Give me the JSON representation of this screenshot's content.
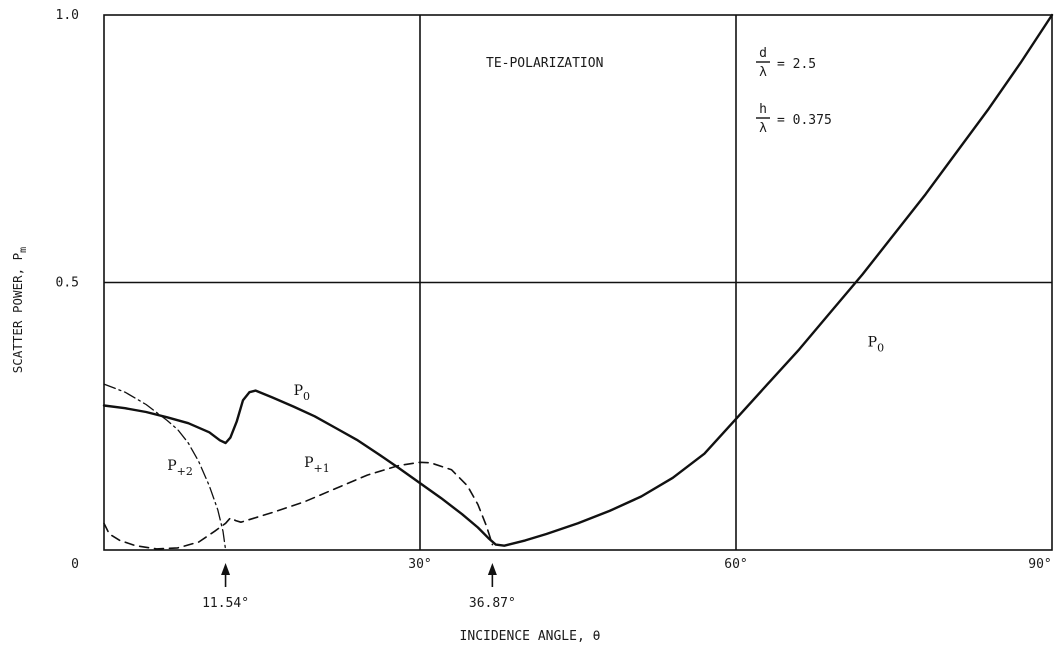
{
  "chart_data": {
    "type": "line",
    "xlabel": "INCIDENCE ANGLE, θ",
    "ylabel": "SCATTER POWER, P",
    "ylabel_sub": "m",
    "xlim": [
      0,
      90
    ],
    "ylim": [
      0,
      1.0
    ],
    "x_ticks": [
      {
        "value": 30,
        "label": "30°"
      },
      {
        "value": 60,
        "label": "60°"
      },
      {
        "value": 90,
        "label": "90°"
      }
    ],
    "y_ticks": [
      {
        "value": 0,
        "label": "0"
      },
      {
        "value": 0.5,
        "label": "0.5"
      },
      {
        "value": 1.0,
        "label": "1.0"
      }
    ],
    "grid": true,
    "title_annotation": "TE-POLARIZATION",
    "parameters": [
      {
        "num": "d",
        "den": "λ",
        "value": "= 2.5"
      },
      {
        "num": "h",
        "den": "λ",
        "value": "= 0.375"
      }
    ],
    "markers": [
      {
        "x": 11.54,
        "label": "11.54°"
      },
      {
        "x": 36.87,
        "label": "36.87°"
      }
    ],
    "series": [
      {
        "name": "P0",
        "label_main": "P",
        "label_sub": "0",
        "line_style": "solid",
        "label_positions": [
          [
            18,
            0.29
          ],
          [
            72.5,
            0.38
          ]
        ],
        "points": [
          [
            0,
            0.27
          ],
          [
            2,
            0.265
          ],
          [
            4,
            0.258
          ],
          [
            6,
            0.248
          ],
          [
            8,
            0.237
          ],
          [
            10,
            0.22
          ],
          [
            11,
            0.205
          ],
          [
            11.54,
            0.2
          ],
          [
            12,
            0.21
          ],
          [
            12.6,
            0.24
          ],
          [
            13.2,
            0.28
          ],
          [
            13.8,
            0.295
          ],
          [
            14.4,
            0.298
          ],
          [
            16,
            0.285
          ],
          [
            18,
            0.268
          ],
          [
            20,
            0.25
          ],
          [
            22,
            0.228
          ],
          [
            24,
            0.206
          ],
          [
            26,
            0.18
          ],
          [
            28,
            0.153
          ],
          [
            30,
            0.125
          ],
          [
            32,
            0.097
          ],
          [
            34,
            0.067
          ],
          [
            35.5,
            0.042
          ],
          [
            36.5,
            0.022
          ],
          [
            37.2,
            0.01
          ],
          [
            38,
            0.008
          ],
          [
            40,
            0.018
          ],
          [
            42,
            0.03
          ],
          [
            45,
            0.05
          ],
          [
            48,
            0.073
          ],
          [
            51,
            0.1
          ],
          [
            54,
            0.135
          ],
          [
            57,
            0.18
          ],
          [
            60,
            0.245
          ],
          [
            63,
            0.31
          ],
          [
            66,
            0.375
          ],
          [
            69,
            0.445
          ],
          [
            72,
            0.515
          ],
          [
            75,
            0.59
          ],
          [
            78,
            0.665
          ],
          [
            81,
            0.745
          ],
          [
            84,
            0.825
          ],
          [
            87,
            0.91
          ],
          [
            90,
            1.0
          ]
        ]
      },
      {
        "name": "P+1",
        "label_main": "P",
        "label_sub": "+1",
        "line_style": "dashed",
        "label_positions": [
          [
            19,
            0.155
          ]
        ],
        "points": [
          [
            0,
            0.05
          ],
          [
            0.5,
            0.03
          ],
          [
            1.5,
            0.018
          ],
          [
            3,
            0.008
          ],
          [
            5,
            0.002
          ],
          [
            7,
            0.004
          ],
          [
            9,
            0.015
          ],
          [
            10.5,
            0.035
          ],
          [
            11.54,
            0.05
          ],
          [
            12,
            0.06
          ],
          [
            12.5,
            0.055
          ],
          [
            13,
            0.052
          ],
          [
            16,
            0.07
          ],
          [
            19,
            0.09
          ],
          [
            22,
            0.115
          ],
          [
            25,
            0.14
          ],
          [
            28,
            0.158
          ],
          [
            30,
            0.164
          ],
          [
            31,
            0.163
          ],
          [
            33,
            0.15
          ],
          [
            34.5,
            0.12
          ],
          [
            35.5,
            0.085
          ],
          [
            36.3,
            0.045
          ],
          [
            36.87,
            0.01
          ]
        ]
      },
      {
        "name": "P+2",
        "label_main": "P",
        "label_sub": "+2",
        "line_style": "dash-dot",
        "label_positions": [
          [
            6,
            0.15
          ]
        ],
        "points": [
          [
            0,
            0.31
          ],
          [
            2,
            0.295
          ],
          [
            4,
            0.272
          ],
          [
            6,
            0.242
          ],
          [
            7,
            0.225
          ],
          [
            8,
            0.2
          ],
          [
            9,
            0.165
          ],
          [
            10,
            0.12
          ],
          [
            10.8,
            0.075
          ],
          [
            11.3,
            0.035
          ],
          [
            11.54,
            0.0
          ]
        ]
      }
    ]
  }
}
